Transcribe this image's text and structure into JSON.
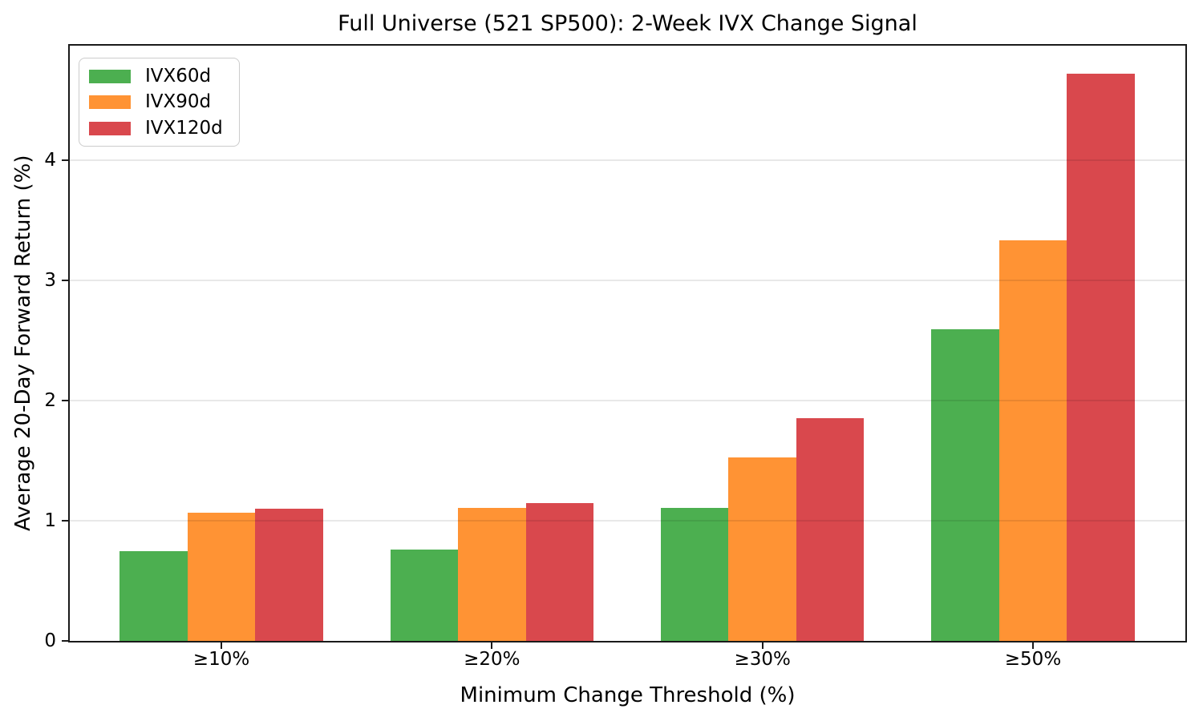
{
  "figure": {
    "background": "#ffffff",
    "spine_color": "#1a1a1a",
    "grid_color": "rgba(0,0,0,0.09)"
  },
  "chart_data": {
    "type": "bar",
    "title": "Full Universe (521 SP500): 2-Week IVX Change Signal",
    "xlabel": "Minimum Change Threshold (%)",
    "ylabel": "Average 20-Day Forward Return (%)",
    "categories": [
      "≥10%",
      "≥20%",
      "≥30%",
      "≥50%"
    ],
    "series": [
      {
        "name": "IVX60d",
        "color": "#4caf50",
        "values": [
          0.75,
          0.76,
          1.11,
          2.59
        ]
      },
      {
        "name": "IVX90d",
        "color": "#ff9334",
        "values": [
          1.07,
          1.11,
          1.53,
          3.33
        ]
      },
      {
        "name": "IVX120d",
        "color": "#d9484d",
        "values": [
          1.1,
          1.15,
          1.85,
          4.72
        ]
      }
    ],
    "yticks": [
      0,
      1,
      2,
      3,
      4
    ],
    "ytick_labels": [
      "0",
      "1",
      "2",
      "3",
      "4"
    ],
    "ylim": [
      0,
      4.953
    ],
    "grid": "horizontal-over-bars",
    "legend_position": "upper-left"
  }
}
